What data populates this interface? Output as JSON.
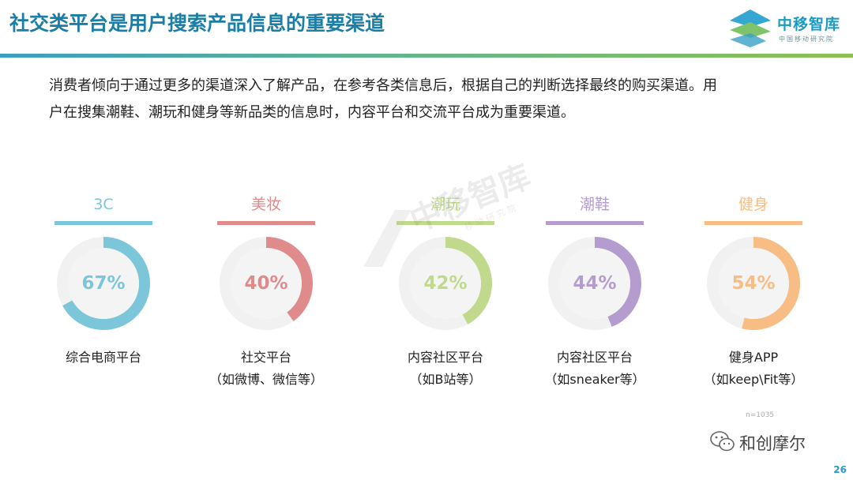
{
  "header": {
    "title": "社交类平台是用户搜索产品信息的重要渠道",
    "logo_name": "中移智库",
    "logo_sub": "中国移动研究院"
  },
  "intro_line1": "消费者倾向于通过更多的渠道深入了解产品，在参考各类信息后，根据自己的判断选择最终的购买渠道。用",
  "intro_line2": "户在搜集潮鞋、潮玩和健身等新品类的信息时，内容平台和交流平台成为重要渠道。",
  "chart_data": {
    "type": "pie",
    "categories": [
      "3C",
      "美妆",
      "潮玩",
      "潮鞋",
      "健身"
    ],
    "values": [
      67,
      40,
      42,
      44,
      54
    ],
    "value_labels": [
      "67%",
      "40%",
      "42%",
      "44%",
      "54%"
    ],
    "platforms": [
      {
        "line1": "综合电商平台",
        "line2": ""
      },
      {
        "line1": "社交平台",
        "line2": "（如微博、微信等）"
      },
      {
        "line1": "内容社区平台",
        "line2": "（如B站等）"
      },
      {
        "line1": "内容社区平台",
        "line2": "（如sneaker等）"
      },
      {
        "line1": "健身APP",
        "line2": "（如keep\\Fit等）"
      }
    ],
    "colors": [
      "#7cc6d9",
      "#e08b8b",
      "#c1d98c",
      "#b59ccf",
      "#f8bd85"
    ],
    "sample_note": "n=1035"
  },
  "watermark_text": "中移智库",
  "watermark_sub": "移 动 研 究 院",
  "footer": {
    "wechat_name": "和创摩尔",
    "page_number": "26"
  }
}
